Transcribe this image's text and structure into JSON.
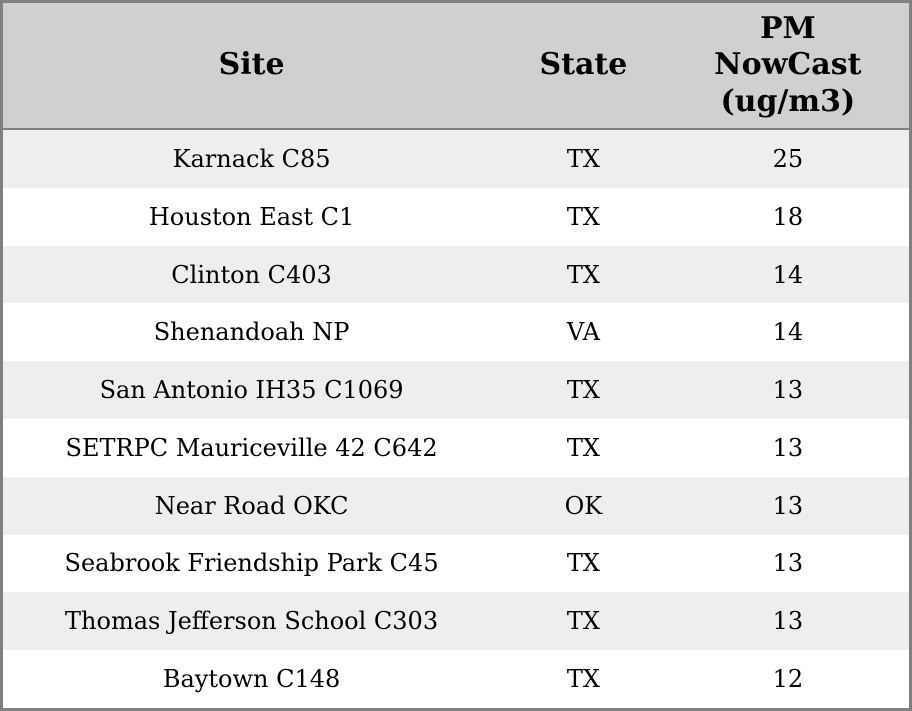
{
  "table": {
    "columns": [
      {
        "key": "site",
        "label": "Site"
      },
      {
        "key": "state",
        "label": "State"
      },
      {
        "key": "pm_nowcast",
        "label": "PM\nNowCast\n(ug/m3)"
      }
    ],
    "rows": [
      {
        "site": "Karnack C85",
        "state": "TX",
        "pm_nowcast": "25"
      },
      {
        "site": "Houston East C1",
        "state": "TX",
        "pm_nowcast": "18"
      },
      {
        "site": "Clinton C403",
        "state": "TX",
        "pm_nowcast": "14"
      },
      {
        "site": "Shenandoah NP",
        "state": "VA",
        "pm_nowcast": "14"
      },
      {
        "site": "San Antonio IH35 C1069",
        "state": "TX",
        "pm_nowcast": "13"
      },
      {
        "site": "SETRPC Mauriceville 42 C642",
        "state": "TX",
        "pm_nowcast": "13"
      },
      {
        "site": "Near Road OKC",
        "state": "OK",
        "pm_nowcast": "13"
      },
      {
        "site": "Seabrook Friendship Park C45",
        "state": "TX",
        "pm_nowcast": "13"
      },
      {
        "site": "Thomas Jefferson School C303",
        "state": "TX",
        "pm_nowcast": "13"
      },
      {
        "site": "Baytown C148",
        "state": "TX",
        "pm_nowcast": "12"
      }
    ]
  },
  "colors": {
    "header_bg": "#d0d0d0",
    "row_odd_bg": "#eeeeee",
    "row_even_bg": "#ffffff",
    "border": "#808080",
    "text": "#000000"
  },
  "chart_data": {
    "type": "table",
    "title": "",
    "columns": [
      "Site",
      "State",
      "PM NowCast (ug/m3)"
    ],
    "rows": [
      [
        "Karnack C85",
        "TX",
        25
      ],
      [
        "Houston East C1",
        "TX",
        18
      ],
      [
        "Clinton C403",
        "TX",
        14
      ],
      [
        "Shenandoah NP",
        "VA",
        14
      ],
      [
        "San Antonio IH35 C1069",
        "TX",
        13
      ],
      [
        "SETRPC Mauriceville 42 C642",
        "TX",
        13
      ],
      [
        "Near Road OKC",
        "OK",
        13
      ],
      [
        "Seabrook Friendship Park C45",
        "TX",
        13
      ],
      [
        "Thomas Jefferson School C303",
        "TX",
        13
      ],
      [
        "Baytown C148",
        "TX",
        12
      ]
    ],
    "layout": {
      "header_background": "#d0d0d0",
      "zebra_striping": true,
      "value_column_sorted": "descending"
    }
  }
}
